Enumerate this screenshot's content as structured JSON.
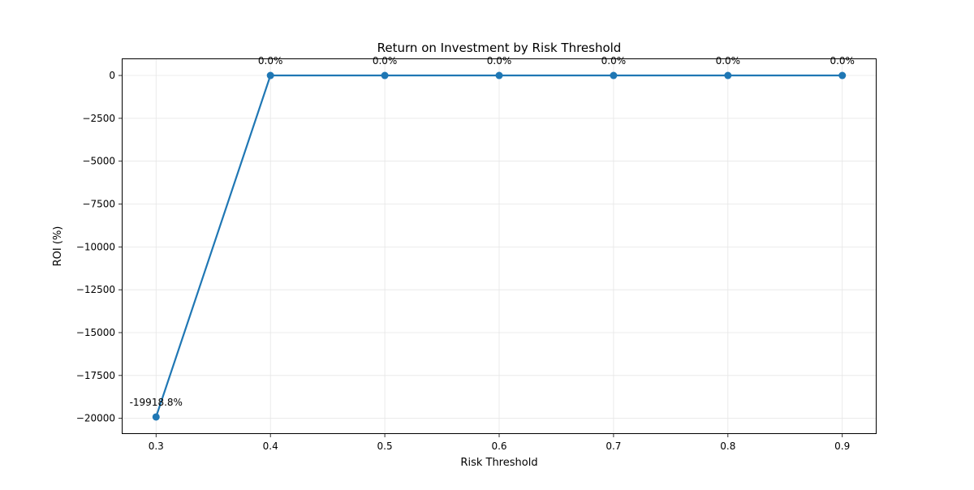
{
  "chart_data": {
    "type": "line",
    "title": "Return on Investment by Risk Threshold",
    "xlabel": "Risk Threshold",
    "ylabel": "ROI (%)",
    "x": [
      0.3,
      0.4,
      0.5,
      0.6,
      0.7,
      0.8,
      0.9
    ],
    "series": [
      {
        "values": [
          -19918.8,
          0.0,
          0.0,
          0.0,
          0.0,
          0.0,
          0.0
        ]
      }
    ],
    "data_labels": [
      "-19918.8%",
      "0.0%",
      "0.0%",
      "0.0%",
      "0.0%",
      "0.0%",
      "0.0%"
    ],
    "xlim": [
      0.27,
      0.93
    ],
    "ylim": [
      -20915,
      995
    ],
    "xticks": [
      0.3,
      0.4,
      0.5,
      0.6,
      0.7,
      0.8,
      0.9
    ],
    "xtick_labels": [
      "0.3",
      "0.4",
      "0.5",
      "0.6",
      "0.7",
      "0.8",
      "0.9"
    ],
    "yticks": [
      0,
      -2500,
      -5000,
      -7500,
      -10000,
      -12500,
      -15000,
      -17500,
      -20000
    ],
    "ytick_labels": [
      "0",
      "−2500",
      "−5000",
      "−7500",
      "−10000",
      "−12500",
      "−15000",
      "−17500",
      "−20000"
    ],
    "grid": true,
    "legend": false,
    "line_color": "#1f77b4"
  }
}
